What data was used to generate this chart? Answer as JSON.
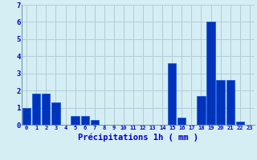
{
  "hours": [
    0,
    1,
    2,
    3,
    4,
    5,
    6,
    7,
    8,
    9,
    10,
    11,
    12,
    13,
    14,
    15,
    16,
    17,
    18,
    19,
    20,
    21,
    22,
    23
  ],
  "values": [
    1.0,
    1.8,
    1.8,
    1.3,
    0.0,
    0.5,
    0.5,
    0.3,
    0.0,
    0.0,
    0.0,
    0.0,
    0.0,
    0.0,
    0.0,
    3.6,
    0.4,
    0.0,
    1.7,
    6.0,
    2.6,
    2.6,
    0.2,
    0.0
  ],
  "bar_color": "#0033bb",
  "bar_edge_color": "#0044dd",
  "background_color": "#d4eef4",
  "grid_color": "#b0ccd8",
  "xlabel": "Précipitations 1h ( mm )",
  "xlabel_color": "#0000cc",
  "tick_color": "#0000cc",
  "ylim": [
    0,
    7
  ],
  "yticks": [
    0,
    1,
    2,
    3,
    4,
    5,
    6,
    7
  ],
  "xlabel_fontsize": 7.5
}
